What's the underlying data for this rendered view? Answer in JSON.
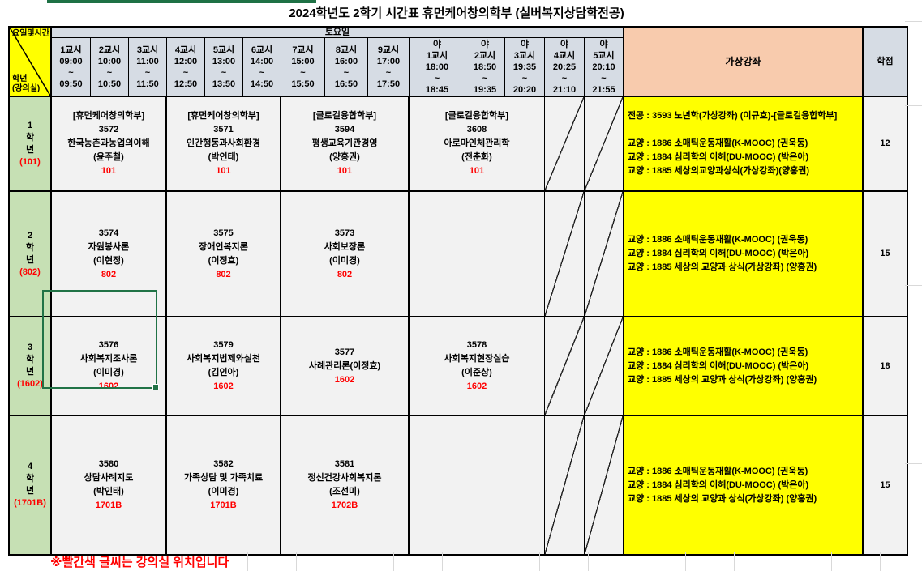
{
  "title": "2024학년도 2학기 시간표 휴먼케어창의학부 (실버복지상담학전공)",
  "colors": {
    "header_fill": "#d6dce4",
    "virtual_header_fill": "#f8cbad",
    "virtual_cell_fill": "#ffff00",
    "grade_fill": "#c6e0b4",
    "corner_fill": "#ffff00",
    "room_red": "#ff0000",
    "selection_green": "#217346"
  },
  "corner": {
    "top": "요일및시간",
    "bottom_line1": "학년",
    "bottom_line2": "(강의실)"
  },
  "day_group_label": "토요일",
  "virtual_header": "가상강좌",
  "credits_header": "학점",
  "periods": [
    {
      "night": false,
      "label": "1교시",
      "start": "09:00",
      "tilde": "~",
      "end": "09:50"
    },
    {
      "night": false,
      "label": "2교시",
      "start": "10:00",
      "tilde": "~",
      "end": "10:50"
    },
    {
      "night": false,
      "label": "3교시",
      "start": "11:00",
      "tilde": "~",
      "end": "11:50"
    },
    {
      "night": false,
      "label": "4교시",
      "start": "12:00",
      "tilde": "~",
      "end": "12:50"
    },
    {
      "night": false,
      "label": "5교시",
      "start": "13:00",
      "tilde": "~",
      "end": "13:50"
    },
    {
      "night": false,
      "label": "6교시",
      "start": "14:00",
      "tilde": "~",
      "end": "14:50"
    },
    {
      "night": false,
      "label": "7교시",
      "start": "15:00",
      "tilde": "~",
      "end": "15:50"
    },
    {
      "night": false,
      "label": "8교시",
      "start": "16:00",
      "tilde": "~",
      "end": "16:50"
    },
    {
      "night": false,
      "label": "9교시",
      "start": "17:00",
      "tilde": "~",
      "end": "17:50"
    },
    {
      "night": true,
      "prefix": "야",
      "label": "1교시",
      "start": "18:00",
      "tilde": "~",
      "end": "18:45"
    },
    {
      "night": true,
      "prefix": "야",
      "label": "2교시",
      "start": "18:50",
      "tilde": "~",
      "end": "19:35"
    },
    {
      "night": true,
      "prefix": "야",
      "label": "3교시",
      "start": "19:35",
      "tilde": "~",
      "end": "20:20"
    },
    {
      "night": true,
      "prefix": "야",
      "label": "4교시",
      "start": "20:25",
      "tilde": "~",
      "end": "21:10"
    },
    {
      "night": true,
      "prefix": "야",
      "label": "5교시",
      "start": "20:10",
      "tilde": "~",
      "end": "21:55"
    }
  ],
  "rows": [
    {
      "grade_lines": [
        "1",
        "학",
        "년"
      ],
      "grade_room": "(101)",
      "credits": "12",
      "selected_class": null,
      "classes": [
        {
          "lines": [
            "[휴먼케어창의학부]",
            "3572",
            "한국농촌과농업의이해",
            "(윤주철)"
          ],
          "room": "101"
        },
        {
          "lines": [
            "[휴먼케어창의학부]",
            "3571",
            "인간행동과사회환경",
            "(박인태)"
          ],
          "room": "101"
        },
        {
          "lines": [
            "[글로컬융합학부]",
            "3594",
            "평생교육기관경영",
            "(양흥권)"
          ],
          "room": "101"
        },
        {
          "lines": [
            "[글로컬융합학부]",
            "3608",
            "아로마인체관리학",
            "(전춘화)"
          ],
          "room": "101"
        }
      ],
      "virtual_lines": [
        "전공 : 3593 노년학(가상강좌) (이규호)-[글로컬융합학부]",
        "",
        "교양 : 1886 소매틱운동재활(K-MOOC) (권욱동)",
        "교양 : 1884 심리학의 이해(DU-MOOC) (박은아)",
        "교양 : 1885 세상의교양과상식(가상강좌)(양흥권)"
      ]
    },
    {
      "grade_lines": [
        "2",
        "학",
        "년"
      ],
      "grade_room": "(802)",
      "credits": "15",
      "selected_class": null,
      "classes": [
        {
          "lines": [
            "3574",
            "자원봉사론",
            "(이현정)"
          ],
          "room": "802"
        },
        {
          "lines": [
            "3575",
            "장애인복지론",
            "(이정효)"
          ],
          "room": "802"
        },
        {
          "lines": [
            "3573",
            "사회보장론",
            "(이미경)"
          ],
          "room": "802"
        },
        null
      ],
      "virtual_lines": [
        "교양 : 1886 소매틱운동재활(K-MOOC) (권욱동)",
        "교양 : 1884 심리학의 이해(DU-MOOC) (박은아)",
        "교양 : 1885 세상의 교양과 상식(가상강좌) (양흥권)"
      ]
    },
    {
      "grade_lines": [
        "3",
        "학",
        "년"
      ],
      "grade_room": "(1602)",
      "credits": "18",
      "selected_class": 0,
      "classes": [
        {
          "lines": [
            "3576",
            "사회복지조사론",
            "(이미경)"
          ],
          "room": "1602"
        },
        {
          "lines": [
            "3579",
            "사회복지법제와실천",
            "(김인아)"
          ],
          "room": "1602"
        },
        {
          "lines": [
            "3577",
            "사례관리론(이정효)"
          ],
          "room": "1602"
        },
        {
          "lines": [
            "3578",
            "사회복지현장실습",
            "(이준상)"
          ],
          "room": "1602"
        }
      ],
      "virtual_lines": [
        "교양 : 1886 소매틱운동재활(K-MOOC) (권욱동)",
        "교양 : 1884 심리학의 이해(DU-MOOC) (박은아)",
        "교양 : 1885 세상의 교양과 상식(가상강좌) (양흥권)"
      ]
    },
    {
      "grade_lines": [
        "4",
        "학",
        "년"
      ],
      "grade_room": "(1701B)",
      "credits": "15",
      "selected_class": null,
      "classes": [
        {
          "lines": [
            "3580",
            "상담사례지도",
            "(박인태)"
          ],
          "room": "1701B"
        },
        {
          "lines": [
            "3582",
            "가족상담 및 가족치료",
            "(이미경)"
          ],
          "room": "1701B"
        },
        {
          "lines": [
            "3581",
            "정신건강사회복지론",
            "(조선미)"
          ],
          "room": "1702B"
        },
        null
      ],
      "virtual_lines": [
        "교양 : 1886 소매틱운동재활(K-MOOC) (권욱동)",
        "교양 : 1884 심리학의 이해(DU-MOOC) (박은아)",
        "교양 : 1885 세상의 교양과 상식(가상강좌) (양흥권)"
      ]
    }
  ],
  "footnote": "※빨간색 글씨는 강의실 위치입니다"
}
